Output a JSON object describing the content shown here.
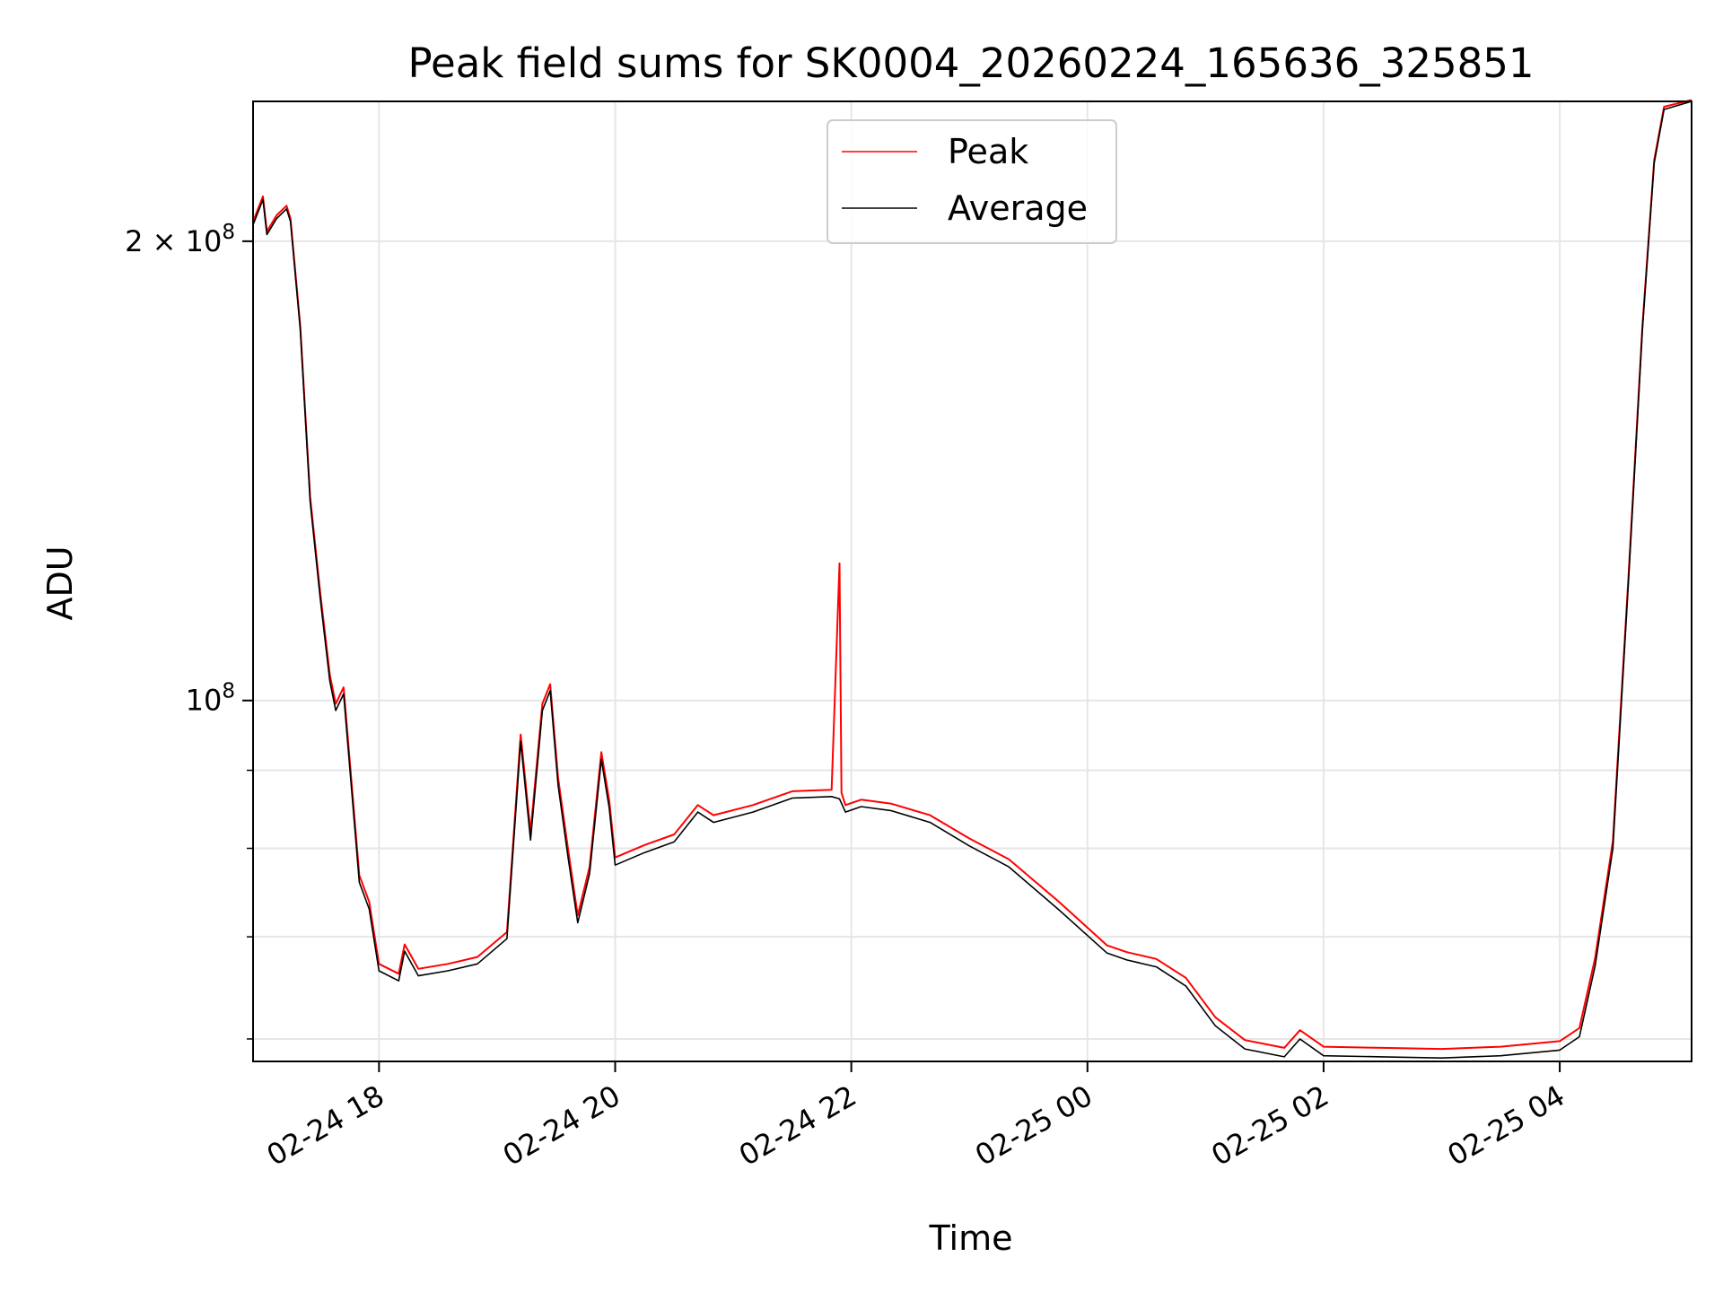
{
  "chart_data": {
    "type": "line",
    "title": "Peak field sums for SK0004_20260224_165636_325851",
    "xlabel": "Time",
    "ylabel": "ADU",
    "yscale": "log",
    "xlim": [
      "2026-02-24 16:56",
      "2026-02-25 05:07"
    ],
    "ylim": [
      58000000,
      247000000
    ],
    "x_ticks": [
      "02-24 18",
      "02-24 20",
      "02-24 22",
      "02-25 00",
      "02-25 02",
      "02-25 04"
    ],
    "y_ticks": [
      {
        "value": 200000000,
        "mantissa": "2",
        "exponent": "8"
      },
      {
        "value": 100000000,
        "mantissa": "",
        "exponent": "8"
      }
    ],
    "y_minor_ticks": [
      60000000,
      70000000,
      80000000,
      90000000
    ],
    "grid": true,
    "legend": {
      "placement": "top-center",
      "entries": [
        "Peak",
        "Average"
      ]
    },
    "colors": {
      "Peak": "#ff0000",
      "Average": "#000000"
    },
    "series": [
      {
        "name": "Average",
        "points": [
          [
            "2026-02-24 16:56",
            205000000
          ],
          [
            "2026-02-24 17:01",
            213000000
          ],
          [
            "2026-02-24 17:03",
            202000000
          ],
          [
            "2026-02-24 17:08",
            207000000
          ],
          [
            "2026-02-24 17:13",
            210000000
          ],
          [
            "2026-02-24 17:15",
            206000000
          ],
          [
            "2026-02-24 17:20",
            175000000
          ],
          [
            "2026-02-24 17:25",
            135000000
          ],
          [
            "2026-02-24 17:30",
            117000000
          ],
          [
            "2026-02-24 17:35",
            103000000
          ],
          [
            "2026-02-24 17:38",
            98500000
          ],
          [
            "2026-02-24 17:42",
            101000000
          ],
          [
            "2026-02-24 17:50",
            76000000
          ],
          [
            "2026-02-24 17:55",
            73000000
          ],
          [
            "2026-02-24 18:00",
            66500000
          ],
          [
            "2026-02-24 18:10",
            65500000
          ],
          [
            "2026-02-24 18:13",
            68500000
          ],
          [
            "2026-02-24 18:20",
            66000000
          ],
          [
            "2026-02-24 18:35",
            66500000
          ],
          [
            "2026-02-24 18:50",
            67200000
          ],
          [
            "2026-02-24 19:05",
            69800000
          ],
          [
            "2026-02-24 19:12",
            94000000
          ],
          [
            "2026-02-24 19:17",
            81000000
          ],
          [
            "2026-02-24 19:23",
            98500000
          ],
          [
            "2026-02-24 19:27",
            101500000
          ],
          [
            "2026-02-24 19:31",
            88000000
          ],
          [
            "2026-02-24 19:36",
            79000000
          ],
          [
            "2026-02-24 19:41",
            71500000
          ],
          [
            "2026-02-24 19:47",
            77000000
          ],
          [
            "2026-02-24 19:53",
            91500000
          ],
          [
            "2026-02-24 19:57",
            85000000
          ],
          [
            "2026-02-24 20:00",
            78000000
          ],
          [
            "2026-02-24 20:15",
            79500000
          ],
          [
            "2026-02-24 20:30",
            80800000
          ],
          [
            "2026-02-24 20:42",
            84500000
          ],
          [
            "2026-02-24 20:50",
            83200000
          ],
          [
            "2026-02-24 21:10",
            84500000
          ],
          [
            "2026-02-24 21:30",
            86300000
          ],
          [
            "2026-02-24 21:50",
            86500000
          ],
          [
            "2026-02-24 21:54",
            86200000
          ],
          [
            "2026-02-24 21:57",
            84500000
          ],
          [
            "2026-02-24 22:05",
            85200000
          ],
          [
            "2026-02-24 22:20",
            84700000
          ],
          [
            "2026-02-24 22:40",
            83200000
          ],
          [
            "2026-02-24 23:00",
            80300000
          ],
          [
            "2026-02-24 23:20",
            77800000
          ],
          [
            "2026-02-24 23:45",
            73000000
          ],
          [
            "2026-02-25 00:10",
            68300000
          ],
          [
            "2026-02-25 00:20",
            67600000
          ],
          [
            "2026-02-25 00:35",
            66900000
          ],
          [
            "2026-02-25 00:50",
            65000000
          ],
          [
            "2026-02-25 01:05",
            61200000
          ],
          [
            "2026-02-25 01:20",
            59100000
          ],
          [
            "2026-02-25 01:40",
            58400000
          ],
          [
            "2026-02-25 01:48",
            60000000
          ],
          [
            "2026-02-25 02:00",
            58500000
          ],
          [
            "2026-02-25 02:30",
            58400000
          ],
          [
            "2026-02-25 03:00",
            58300000
          ],
          [
            "2026-02-25 03:30",
            58500000
          ],
          [
            "2026-02-25 04:00",
            59000000
          ],
          [
            "2026-02-25 04:10",
            60200000
          ],
          [
            "2026-02-25 04:18",
            67000000
          ],
          [
            "2026-02-25 04:27",
            80000000
          ],
          [
            "2026-02-25 04:35",
            120000000
          ],
          [
            "2026-02-25 04:42",
            175000000
          ],
          [
            "2026-02-25 04:48",
            225000000
          ],
          [
            "2026-02-25 04:53",
            244000000
          ],
          [
            "2026-02-25 05:07",
            247000000
          ]
        ]
      },
      {
        "name": "Peak",
        "points": [
          [
            "2026-02-24 16:56",
            206000000
          ],
          [
            "2026-02-24 17:01",
            214000000
          ],
          [
            "2026-02-24 17:03",
            203000000
          ],
          [
            "2026-02-24 17:08",
            208000000
          ],
          [
            "2026-02-24 17:13",
            211000000
          ],
          [
            "2026-02-24 17:15",
            207000000
          ],
          [
            "2026-02-24 17:20",
            176000000
          ],
          [
            "2026-02-24 17:25",
            136000000
          ],
          [
            "2026-02-24 17:30",
            118000000
          ],
          [
            "2026-02-24 17:35",
            104000000
          ],
          [
            "2026-02-24 17:38",
            99500000
          ],
          [
            "2026-02-24 17:42",
            102000000
          ],
          [
            "2026-02-24 17:50",
            76800000
          ],
          [
            "2026-02-24 17:55",
            73800000
          ],
          [
            "2026-02-24 18:00",
            67200000
          ],
          [
            "2026-02-24 18:10",
            66200000
          ],
          [
            "2026-02-24 18:13",
            69200000
          ],
          [
            "2026-02-24 18:20",
            66700000
          ],
          [
            "2026-02-24 18:35",
            67200000
          ],
          [
            "2026-02-24 18:50",
            67900000
          ],
          [
            "2026-02-24 19:05",
            70500000
          ],
          [
            "2026-02-24 19:12",
            95000000
          ],
          [
            "2026-02-24 19:17",
            82000000
          ],
          [
            "2026-02-24 19:23",
            99500000
          ],
          [
            "2026-02-24 19:27",
            102500000
          ],
          [
            "2026-02-24 19:31",
            89000000
          ],
          [
            "2026-02-24 19:36",
            80000000
          ],
          [
            "2026-02-24 19:41",
            72300000
          ],
          [
            "2026-02-24 19:47",
            77800000
          ],
          [
            "2026-02-24 19:53",
            92500000
          ],
          [
            "2026-02-24 19:57",
            86000000
          ],
          [
            "2026-02-24 20:00",
            78900000
          ],
          [
            "2026-02-24 20:15",
            80400000
          ],
          [
            "2026-02-24 20:30",
            81700000
          ],
          [
            "2026-02-24 20:42",
            85400000
          ],
          [
            "2026-02-24 20:50",
            84100000
          ],
          [
            "2026-02-24 21:10",
            85400000
          ],
          [
            "2026-02-24 21:30",
            87200000
          ],
          [
            "2026-02-24 21:50",
            87400000
          ],
          [
            "2026-02-24 21:54",
            123000000
          ],
          [
            "2026-02-24 21:55",
            87000000
          ],
          [
            "2026-02-24 21:57",
            85400000
          ],
          [
            "2026-02-24 22:05",
            86100000
          ],
          [
            "2026-02-24 22:20",
            85600000
          ],
          [
            "2026-02-24 22:40",
            84100000
          ],
          [
            "2026-02-24 23:00",
            81200000
          ],
          [
            "2026-02-24 23:20",
            78700000
          ],
          [
            "2026-02-24 23:45",
            73900000
          ],
          [
            "2026-02-25 00:10",
            69100000
          ],
          [
            "2026-02-25 00:20",
            68400000
          ],
          [
            "2026-02-25 00:35",
            67700000
          ],
          [
            "2026-02-25 00:50",
            65800000
          ],
          [
            "2026-02-25 01:05",
            62000000
          ],
          [
            "2026-02-25 01:20",
            59900000
          ],
          [
            "2026-02-25 01:40",
            59200000
          ],
          [
            "2026-02-25 01:48",
            60800000
          ],
          [
            "2026-02-25 02:00",
            59300000
          ],
          [
            "2026-02-25 02:30",
            59200000
          ],
          [
            "2026-02-25 03:00",
            59100000
          ],
          [
            "2026-02-25 03:30",
            59300000
          ],
          [
            "2026-02-25 04:00",
            59800000
          ],
          [
            "2026-02-25 04:10",
            61000000
          ],
          [
            "2026-02-25 04:18",
            67800000
          ],
          [
            "2026-02-25 04:27",
            80900000
          ],
          [
            "2026-02-25 04:35",
            121000000
          ],
          [
            "2026-02-25 04:42",
            176000000
          ],
          [
            "2026-02-25 04:48",
            226000000
          ],
          [
            "2026-02-25 04:53",
            245000000
          ],
          [
            "2026-02-25 05:07",
            247500000
          ]
        ]
      }
    ]
  }
}
